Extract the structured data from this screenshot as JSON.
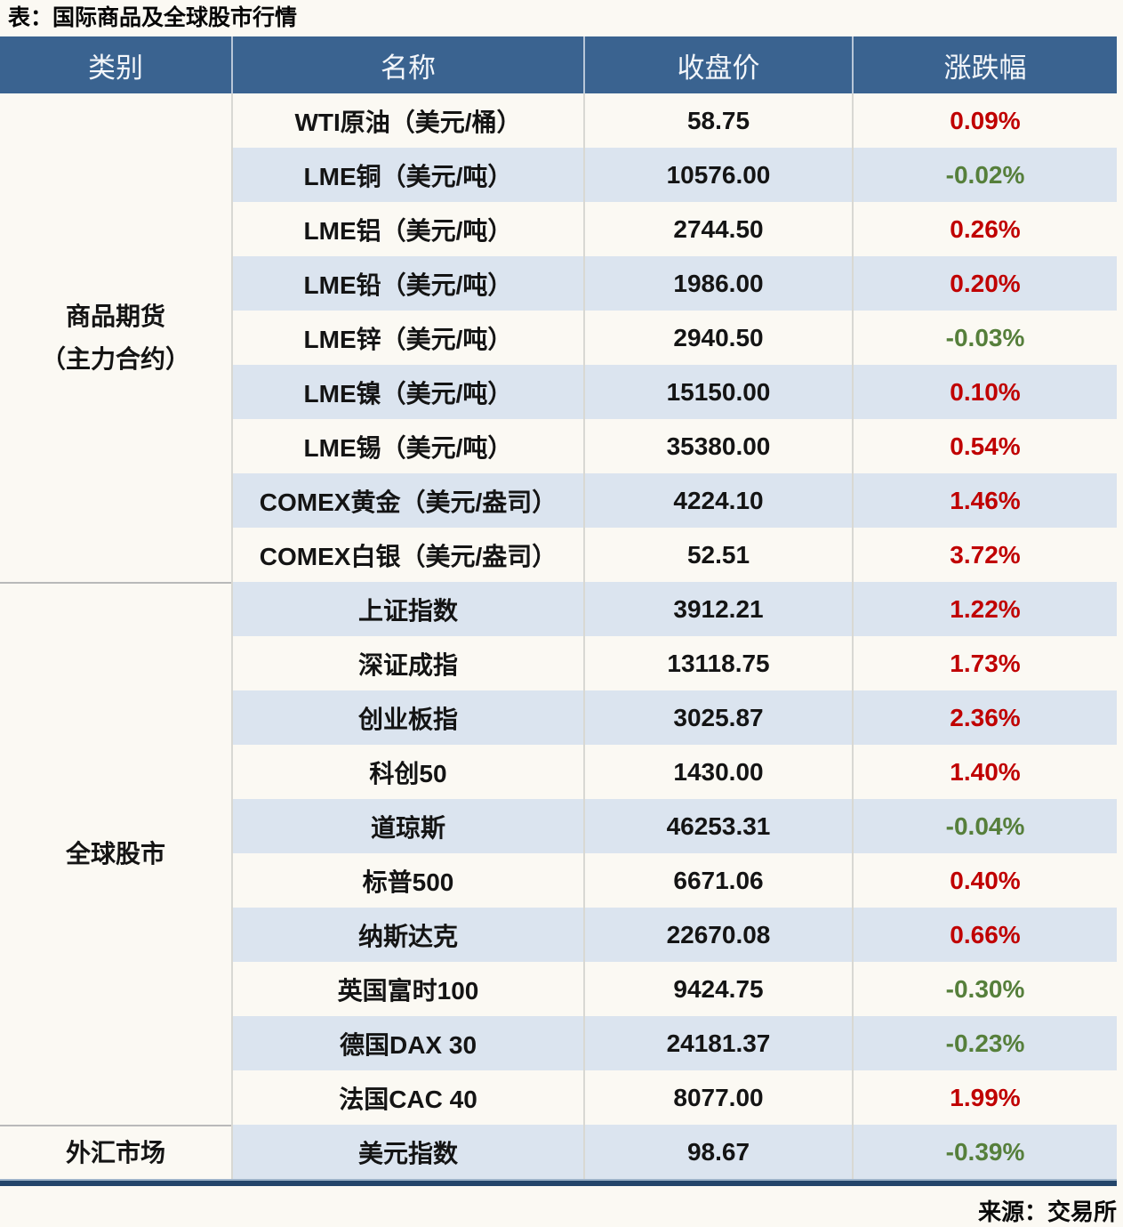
{
  "title": "表：国际商品及全球股市行情",
  "source": "来源：交易所",
  "columns": [
    "类别",
    "名称",
    "收盘价",
    "涨跌幅"
  ],
  "colors": {
    "header_bg": "#3a6390",
    "stripe_bg": "#dbe4ef",
    "up_red": "#c00000",
    "down_green": "#567f3b",
    "bottom_bar": "#24456a"
  },
  "sections": [
    {
      "category_lines": [
        "商品期货",
        "（主力合约）"
      ],
      "rows": [
        {
          "name": "WTI原油（美元/桶）",
          "close": "58.75",
          "change": "0.09%",
          "dir": "up"
        },
        {
          "name": "LME铜（美元/吨）",
          "close": "10576.00",
          "change": "-0.02%",
          "dir": "down"
        },
        {
          "name": "LME铝（美元/吨）",
          "close": "2744.50",
          "change": "0.26%",
          "dir": "up"
        },
        {
          "name": "LME铅（美元/吨）",
          "close": "1986.00",
          "change": "0.20%",
          "dir": "up"
        },
        {
          "name": "LME锌（美元/吨）",
          "close": "2940.50",
          "change": "-0.03%",
          "dir": "down"
        },
        {
          "name": "LME镍（美元/吨）",
          "close": "15150.00",
          "change": "0.10%",
          "dir": "up"
        },
        {
          "name": "LME锡（美元/吨）",
          "close": "35380.00",
          "change": "0.54%",
          "dir": "up"
        },
        {
          "name": "COMEX黄金（美元/盎司）",
          "close": "4224.10",
          "change": "1.46%",
          "dir": "up"
        },
        {
          "name": "COMEX白银（美元/盎司）",
          "close": "52.51",
          "change": "3.72%",
          "dir": "up"
        }
      ]
    },
    {
      "category_lines": [
        "全球股市"
      ],
      "rows": [
        {
          "name": "上证指数",
          "close": "3912.21",
          "change": "1.22%",
          "dir": "up"
        },
        {
          "name": "深证成指",
          "close": "13118.75",
          "change": "1.73%",
          "dir": "up"
        },
        {
          "name": "创业板指",
          "close": "3025.87",
          "change": "2.36%",
          "dir": "up"
        },
        {
          "name": "科创50",
          "close": "1430.00",
          "change": "1.40%",
          "dir": "up"
        },
        {
          "name": "道琼斯",
          "close": "46253.31",
          "change": "-0.04%",
          "dir": "down"
        },
        {
          "name": "标普500",
          "close": "6671.06",
          "change": "0.40%",
          "dir": "up"
        },
        {
          "name": "纳斯达克",
          "close": "22670.08",
          "change": "0.66%",
          "dir": "up"
        },
        {
          "name": "英国富时100",
          "close": "9424.75",
          "change": "-0.30%",
          "dir": "down"
        },
        {
          "name": "德国DAX 30",
          "close": "24181.37",
          "change": "-0.23%",
          "dir": "down"
        },
        {
          "name": "法国CAC 40",
          "close": "8077.00",
          "change": "1.99%",
          "dir": "up"
        }
      ]
    },
    {
      "category_lines": [
        "外汇市场"
      ],
      "rows": [
        {
          "name": "美元指数",
          "close": "98.67",
          "change": "-0.39%",
          "dir": "down"
        }
      ]
    }
  ],
  "chart_data": {
    "type": "table",
    "title": "表：国际商品及全球股市行情",
    "columns": [
      "类别",
      "名称",
      "收盘价",
      "涨跌幅"
    ],
    "rows": [
      [
        "商品期货（主力合约）",
        "WTI原油（美元/桶）",
        58.75,
        "0.09%"
      ],
      [
        "商品期货（主力合约）",
        "LME铜（美元/吨）",
        10576.0,
        "-0.02%"
      ],
      [
        "商品期货（主力合约）",
        "LME铝（美元/吨）",
        2744.5,
        "0.26%"
      ],
      [
        "商品期货（主力合约）",
        "LME铅（美元/吨）",
        1986.0,
        "0.20%"
      ],
      [
        "商品期货（主力合约）",
        "LME锌（美元/吨）",
        2940.5,
        "-0.03%"
      ],
      [
        "商品期货（主力合约）",
        "LME镍（美元/吨）",
        15150.0,
        "0.10%"
      ],
      [
        "商品期货（主力合约）",
        "LME锡（美元/吨）",
        35380.0,
        "0.54%"
      ],
      [
        "商品期货（主力合约）",
        "COMEX黄金（美元/盎司）",
        4224.1,
        "1.46%"
      ],
      [
        "商品期货（主力合约）",
        "COMEX白银（美元/盎司）",
        52.51,
        "3.72%"
      ],
      [
        "全球股市",
        "上证指数",
        3912.21,
        "1.22%"
      ],
      [
        "全球股市",
        "深证成指",
        13118.75,
        "1.73%"
      ],
      [
        "全球股市",
        "创业板指",
        3025.87,
        "2.36%"
      ],
      [
        "全球股市",
        "科创50",
        1430.0,
        "1.40%"
      ],
      [
        "全球股市",
        "道琼斯",
        46253.31,
        "-0.04%"
      ],
      [
        "全球股市",
        "标普500",
        6671.06,
        "0.40%"
      ],
      [
        "全球股市",
        "纳斯达克",
        22670.08,
        "0.66%"
      ],
      [
        "全球股市",
        "英国富时100",
        9424.75,
        "-0.30%"
      ],
      [
        "全球股市",
        "德国DAX 30",
        24181.37,
        "-0.23%"
      ],
      [
        "全球股市",
        "法国CAC 40",
        8077.0,
        "1.99%"
      ],
      [
        "外汇市场",
        "美元指数",
        98.67,
        "-0.39%"
      ]
    ],
    "source": "来源：交易所",
    "legend": "红色=上涨(up)，绿色=下跌(down)"
  }
}
